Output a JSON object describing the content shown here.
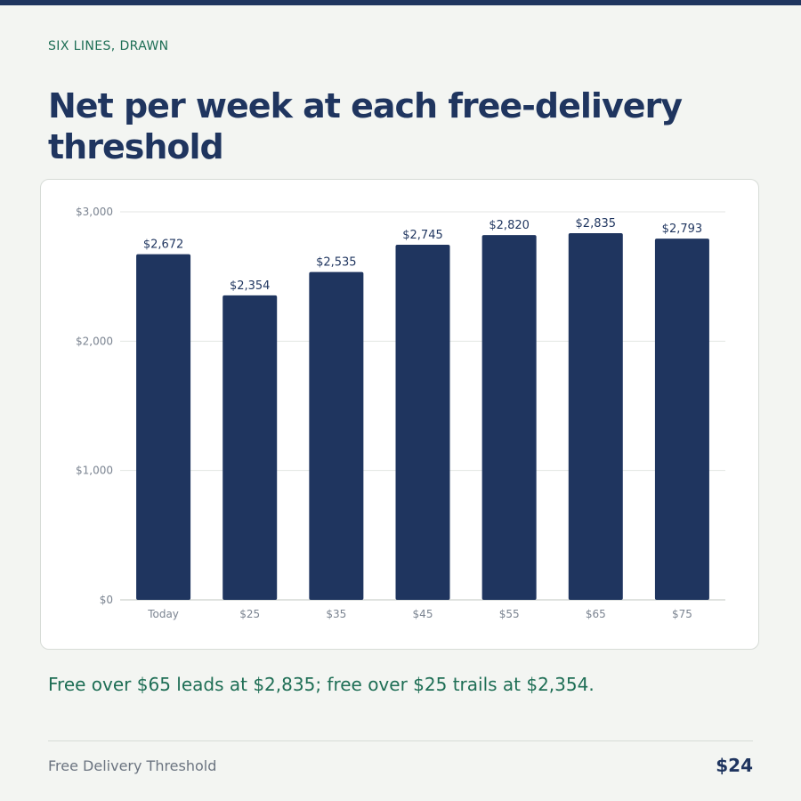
{
  "header": {
    "eyebrow": "SIX LINES, DRAWN",
    "title": "Net per week at each free-delivery threshold"
  },
  "caption": "Free over $65 leads at $2,835; free over $25 trails at $2,354.",
  "footer": {
    "label": "Free Delivery Threshold",
    "value": "$24"
  },
  "colors": {
    "bar": "#1f355f",
    "grid": "#e3e6e3",
    "axis": "#c2c7c2",
    "tick_text": "#7b8491",
    "label_text": "#1f355f"
  },
  "chart_data": {
    "type": "bar",
    "categories": [
      "Today",
      "$25",
      "$35",
      "$45",
      "$55",
      "$65",
      "$75"
    ],
    "values": [
      2672,
      2354,
      2535,
      2745,
      2820,
      2835,
      2793
    ],
    "value_labels": [
      "$2,672",
      "$2,354",
      "$2,535",
      "$2,745",
      "$2,820",
      "$2,835",
      "$2,793"
    ],
    "y_ticks": [
      0,
      1000,
      2000,
      3000
    ],
    "y_tick_labels": [
      "$0",
      "$1,000",
      "$2,000",
      "$3,000"
    ],
    "ylim": [
      0,
      3000
    ],
    "title": "",
    "xlabel": "",
    "ylabel": "",
    "grid": true,
    "legend": "none"
  }
}
